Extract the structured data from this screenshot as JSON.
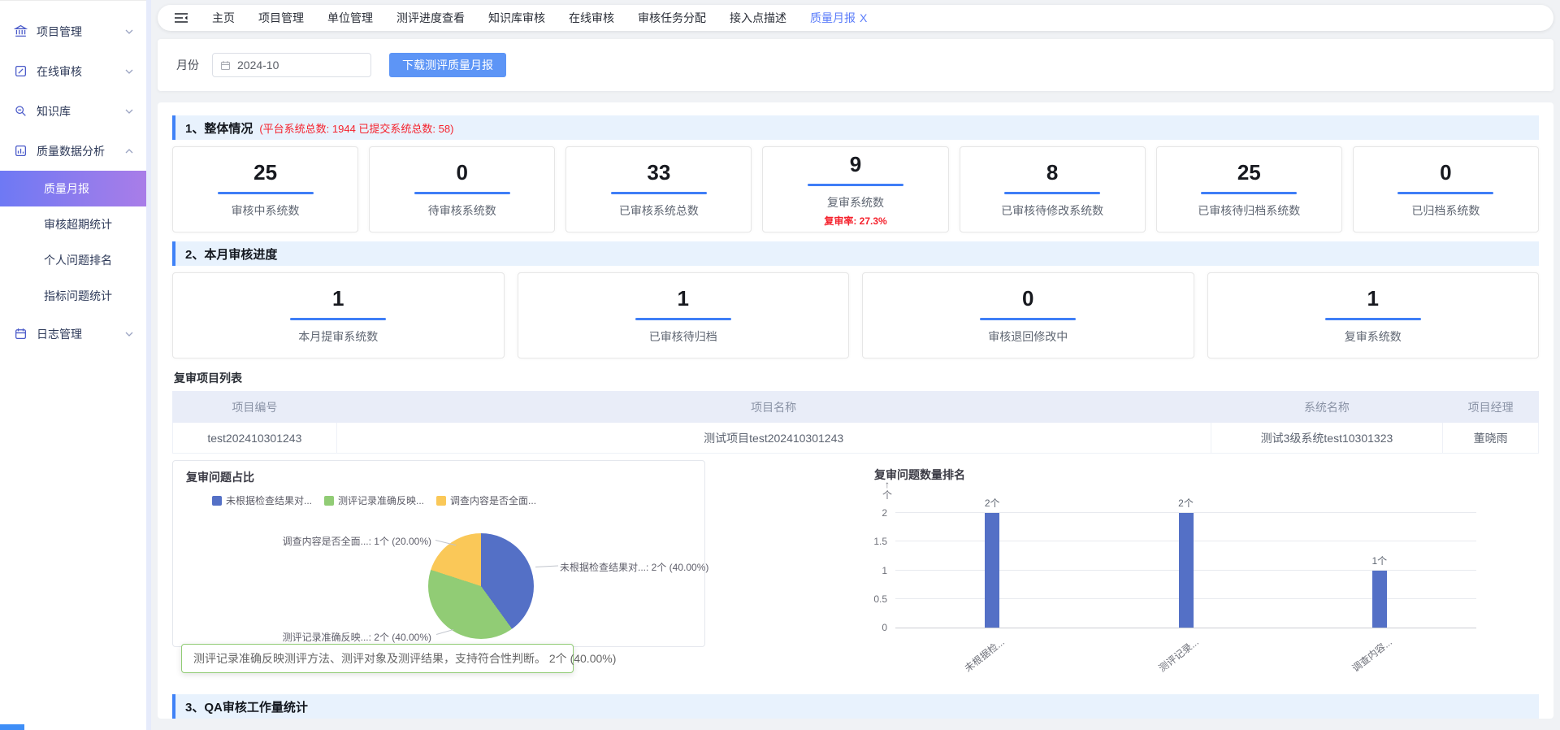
{
  "colors": {
    "accent_blue": "#3f7ef7",
    "primary_button_blue": "#5d95f6",
    "alert_red": "#f5222d",
    "sidebar_active_gradient_start": "#6e79f4",
    "sidebar_active_gradient_end": "#a97de8",
    "section_header_bg": "#e8f2fd"
  },
  "sidebar": {
    "items": [
      {
        "label": "项目管理",
        "icon": "bank-icon",
        "chevron": "down"
      },
      {
        "label": "在线审核",
        "icon": "edit-icon",
        "chevron": "down"
      },
      {
        "label": "知识库",
        "icon": "magnifier-icon",
        "chevron": "down"
      },
      {
        "label": "质量数据分析",
        "icon": "chart-doc-icon",
        "chevron": "up",
        "children": [
          "质量月报",
          "审核超期统计",
          "个人问题排名",
          "指标问题统计"
        ],
        "active_child": "质量月报"
      },
      {
        "label": "日志管理",
        "icon": "calendar-icon",
        "chevron": "down"
      }
    ]
  },
  "topnav": {
    "tabs": [
      "主页",
      "项目管理",
      "单位管理",
      "测评进度查看",
      "知识库审核",
      "在线审核",
      "审核任务分配",
      "接入点描述"
    ],
    "active_tab": {
      "label": "质量月报",
      "close": "X"
    }
  },
  "filter": {
    "month_label": "月份",
    "month_value": "2024-10",
    "download_button": "下载测评质量月报"
  },
  "sections": {
    "overall": {
      "title": "1、整体情况",
      "annotation": "(平台系统总数: 1944   已提交系统总数: 58)"
    },
    "monthly": {
      "title": "2、本月审核进度"
    },
    "qa": {
      "title": "3、QA审核工作量统计"
    }
  },
  "overview_cards": [
    {
      "value": "25",
      "label": "审核中系统数"
    },
    {
      "value": "0",
      "label": "待审核系统数"
    },
    {
      "value": "33",
      "label": "已审核系统总数"
    },
    {
      "value": "9",
      "label": "复审系统数",
      "sub": "复审率: 27.3%"
    },
    {
      "value": "8",
      "label": "已审核待修改系统数"
    },
    {
      "value": "25",
      "label": "已审核待归档系统数"
    },
    {
      "value": "0",
      "label": "已归档系统数"
    }
  ],
  "month_cards": [
    {
      "value": "1",
      "label": "本月提审系统数"
    },
    {
      "value": "1",
      "label": "已审核待归档"
    },
    {
      "value": "0",
      "label": "审核退回修改中"
    },
    {
      "value": "1",
      "label": "复审系统数"
    }
  ],
  "review_table": {
    "title": "复审项目列表",
    "columns": [
      "项目编号",
      "项目名称",
      "系统名称",
      "项目经理"
    ],
    "rows": [
      [
        "test202410301243",
        "测试项目test202410301243",
        "测试3级系统test10301323",
        "董晓雨"
      ]
    ]
  },
  "chart_data": [
    {
      "type": "pie",
      "title": "复审问题占比",
      "legend": [
        "未根据检查结果对...",
        "测评记录准确反映...",
        "调查内容是否全面..."
      ],
      "slices": [
        {
          "name": "未根据检查结果对...",
          "value": 2,
          "pct": 40,
          "color": "#5470c6",
          "label": "未根据检查结果对...: 2个  (40.00%)"
        },
        {
          "name": "测评记录准确反映...",
          "value": 2,
          "pct": 40,
          "color": "#91cc75",
          "label": "测评记录准确反映...: 2个  (40.00%)"
        },
        {
          "name": "调查内容是否全面...",
          "value": 1,
          "pct": 20,
          "color": "#fac858",
          "label": "调查内容是否全面...: 1个  (20.00%)"
        }
      ],
      "tooltip": "测评记录准确反映测评方法、测评对象及测评结果，支持符合性判断。 2个 (40.00%)"
    },
    {
      "type": "bar",
      "title": "复审问题数量排名",
      "unit": "个",
      "categories": [
        "未根据检...",
        "测评记录...",
        "调查内容..."
      ],
      "values": [
        2,
        2,
        1
      ],
      "bar_labels": [
        "2个",
        "2个",
        "1个"
      ],
      "yticks": [
        0,
        0.5,
        1,
        1.5,
        2
      ],
      "ylim": [
        0,
        2
      ],
      "color": "#5470c6",
      "legend_position": "none",
      "grid": true
    }
  ]
}
